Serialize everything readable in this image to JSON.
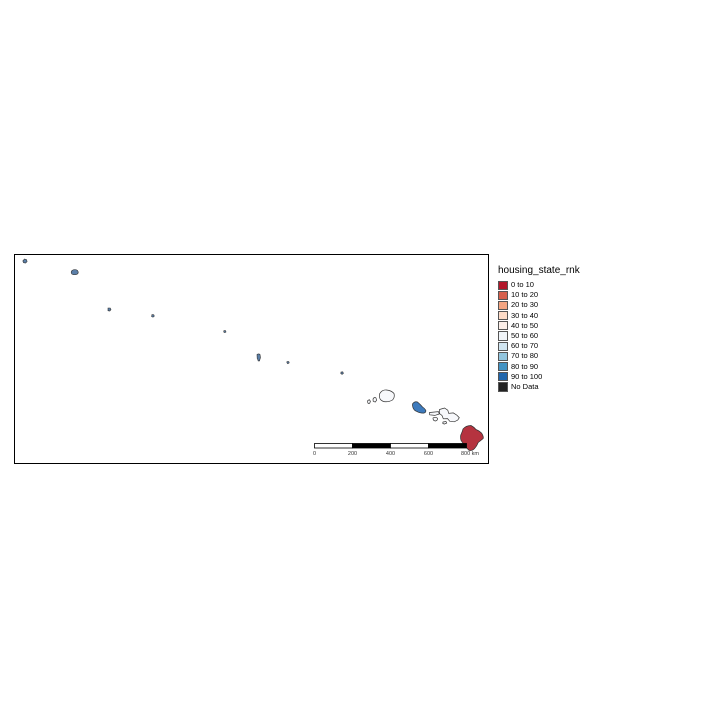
{
  "legend": {
    "title": "housing_state_rnk",
    "items": [
      {
        "label": "0 to 10",
        "color": "#b2182b"
      },
      {
        "label": "10 to 20",
        "color": "#d6604d"
      },
      {
        "label": "20 to 30",
        "color": "#f4a582"
      },
      {
        "label": "30 to 40",
        "color": "#fddbc7"
      },
      {
        "label": "40 to 50",
        "color": "#fbeee8"
      },
      {
        "label": "50 to 60",
        "color": "#f0f4f8"
      },
      {
        "label": "60 to 70",
        "color": "#d1e5f0"
      },
      {
        "label": "70 to 80",
        "color": "#92c5de"
      },
      {
        "label": "80 to 90",
        "color": "#4393c3"
      },
      {
        "label": "90 to 100",
        "color": "#2166ac"
      },
      {
        "label": "No Data",
        "color": "#222222"
      }
    ]
  },
  "scale_bar": {
    "tick_labels": [
      "0",
      "200",
      "400",
      "600",
      "800 km"
    ]
  },
  "regions": [
    {
      "name": "big-island",
      "rank_class": "0 to 10",
      "color": "#b5333f"
    },
    {
      "name": "maui",
      "rank_class": "50 to 60",
      "color": "#f7f8fb"
    },
    {
      "name": "oahu",
      "rank_class": "80 to 90",
      "color": "#3e7bbd"
    },
    {
      "name": "kauai",
      "rank_class": "50 to 60",
      "color": "#f7f8fb"
    },
    {
      "name": "northwestern-islands",
      "rank_class": "80 to 90",
      "color": "#5b7fa8"
    }
  ]
}
